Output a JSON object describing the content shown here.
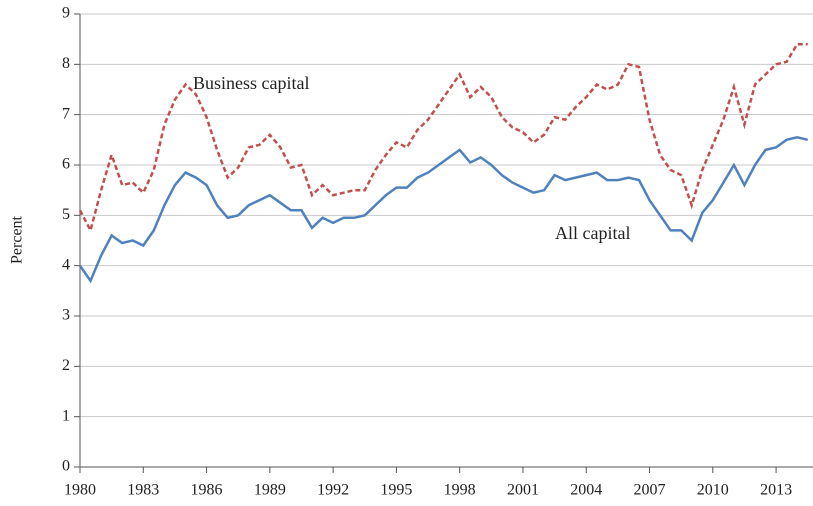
{
  "chart_data": {
    "type": "line",
    "ylabel": "Percent",
    "annotations": [
      "Business capital",
      "All capital"
    ],
    "x": [
      1980,
      1980.5,
      1981,
      1981.5,
      1982,
      1982.5,
      1983,
      1983.5,
      1984,
      1984.5,
      1985,
      1985.5,
      1986,
      1986.5,
      1987,
      1987.5,
      1988,
      1988.5,
      1989,
      1989.5,
      1990,
      1990.5,
      1991,
      1991.5,
      1992,
      1992.5,
      1993,
      1993.5,
      1994,
      1994.5,
      1995,
      1995.5,
      1996,
      1996.5,
      1997,
      1997.5,
      1998,
      1998.5,
      1999,
      1999.5,
      2000,
      2000.5,
      2001,
      2001.5,
      2002,
      2002.5,
      2003,
      2003.5,
      2004,
      2004.5,
      2005,
      2005.5,
      2006,
      2006.5,
      2007,
      2007.5,
      2008,
      2008.5,
      2009,
      2009.5,
      2010,
      2010.5,
      2011,
      2011.5,
      2012,
      2012.5,
      2013,
      2013.5,
      2014,
      2014.5
    ],
    "series": [
      {
        "name": "Business capital",
        "color": "#c0504d",
        "dash": true,
        "values": [
          5.1,
          4.7,
          5.5,
          6.2,
          5.6,
          5.65,
          5.45,
          5.9,
          6.8,
          7.3,
          7.6,
          7.4,
          6.95,
          6.3,
          5.75,
          5.95,
          6.35,
          6.4,
          6.6,
          6.35,
          5.95,
          6.0,
          5.4,
          5.6,
          5.4,
          5.45,
          5.5,
          5.5,
          5.9,
          6.2,
          6.45,
          6.35,
          6.7,
          6.9,
          7.2,
          7.5,
          7.8,
          7.35,
          7.55,
          7.35,
          6.95,
          6.75,
          6.65,
          6.45,
          6.6,
          6.95,
          6.9,
          7.15,
          7.35,
          7.6,
          7.5,
          7.6,
          8.0,
          7.95,
          6.9,
          6.2,
          5.9,
          5.8,
          5.2,
          5.9,
          6.4,
          6.9,
          7.55,
          6.8,
          7.6,
          7.8,
          8.0,
          8.05,
          8.4,
          8.4
        ]
      },
      {
        "name": "All capital",
        "color": "#4f81bd",
        "dash": false,
        "values": [
          4.0,
          3.7,
          4.2,
          4.6,
          4.45,
          4.5,
          4.4,
          4.7,
          5.2,
          5.6,
          5.85,
          5.75,
          5.6,
          5.2,
          4.95,
          5.0,
          5.2,
          5.3,
          5.4,
          5.25,
          5.1,
          5.1,
          4.75,
          4.95,
          4.85,
          4.95,
          4.95,
          5.0,
          5.2,
          5.4,
          5.55,
          5.55,
          5.75,
          5.85,
          6.0,
          6.15,
          6.3,
          6.05,
          6.15,
          6.0,
          5.8,
          5.65,
          5.55,
          5.45,
          5.5,
          5.8,
          5.7,
          5.75,
          5.8,
          5.85,
          5.7,
          5.7,
          5.75,
          5.7,
          5.3,
          5.0,
          4.7,
          4.7,
          4.5,
          5.05,
          5.3,
          5.65,
          6.0,
          5.6,
          6.0,
          6.3,
          6.35,
          6.5,
          6.55,
          6.5
        ]
      }
    ],
    "xlim": [
      1980,
      2014.75
    ],
    "xticks": [
      1980,
      1983,
      1986,
      1989,
      1992,
      1995,
      1998,
      2001,
      2004,
      2007,
      2010,
      2013
    ],
    "ylim": [
      0,
      9
    ],
    "yticks": [
      0,
      1,
      2,
      3,
      4,
      5,
      6,
      7,
      8,
      9
    ],
    "grid": true
  }
}
